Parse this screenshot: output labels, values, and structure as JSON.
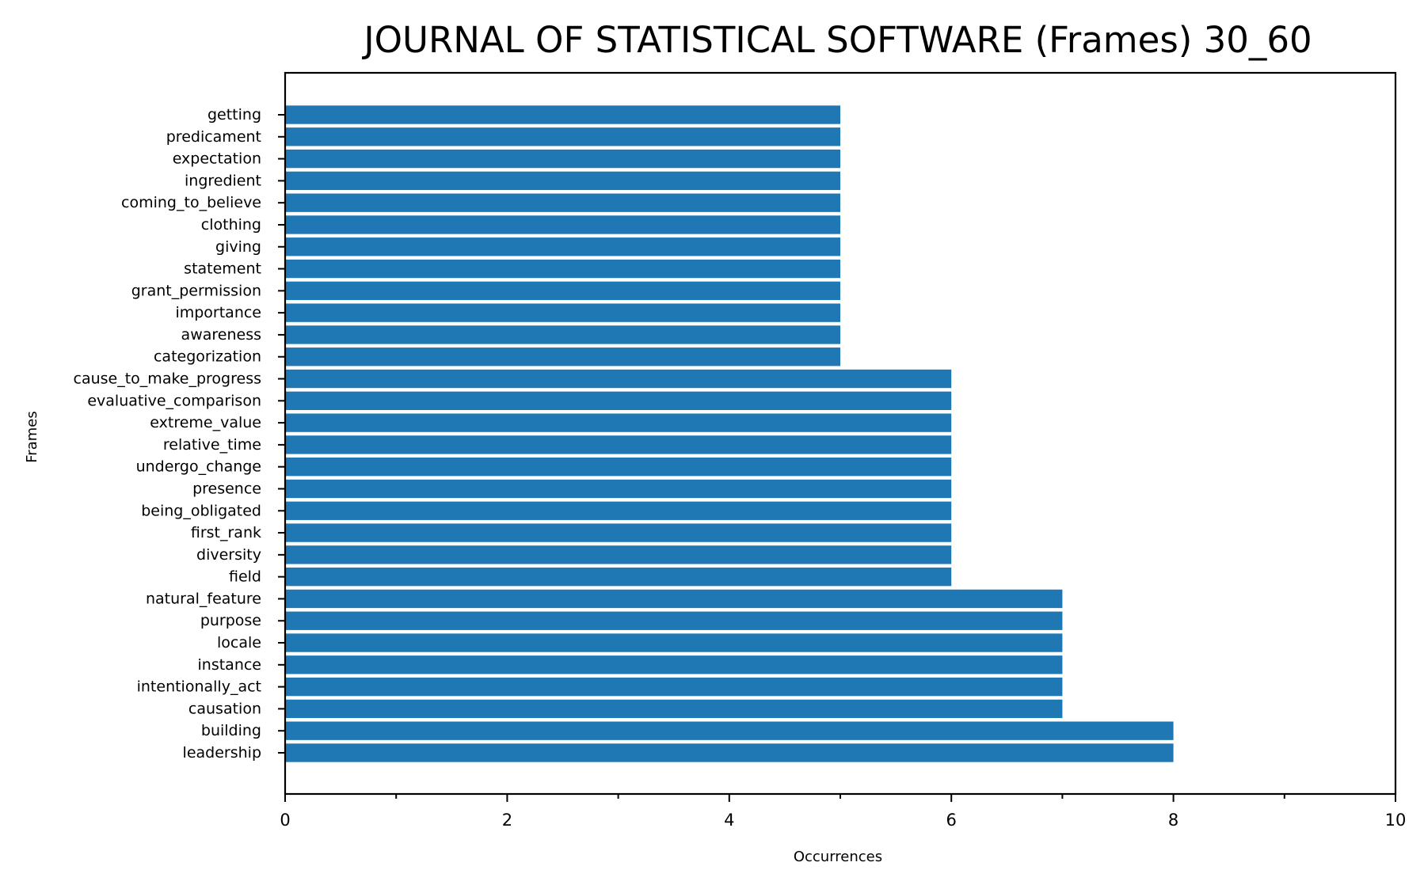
{
  "chart_data": {
    "type": "bar",
    "orientation": "horizontal",
    "title": "JOURNAL OF STATISTICAL SOFTWARE (Frames) 30_60",
    "xlabel": "Occurrences",
    "ylabel": "Frames",
    "xlim": [
      0,
      10
    ],
    "xticks": [
      0,
      2,
      4,
      6,
      8,
      10
    ],
    "grid": false,
    "bar_color": "#1f77b4",
    "categories": [
      "getting",
      "predicament",
      "expectation",
      "ingredient",
      "coming_to_believe",
      "clothing",
      "giving",
      "statement",
      "grant_permission",
      "importance",
      "awareness",
      "categorization",
      "cause_to_make_progress",
      "evaluative_comparison",
      "extreme_value",
      "relative_time",
      "undergo_change",
      "presence",
      "being_obligated",
      "first_rank",
      "diversity",
      "field",
      "natural_feature",
      "purpose",
      "locale",
      "instance",
      "intentionally_act",
      "causation",
      "building",
      "leadership"
    ],
    "values": [
      5,
      5,
      5,
      5,
      5,
      5,
      5,
      5,
      5,
      5,
      5,
      5,
      6,
      6,
      6,
      6,
      6,
      6,
      6,
      6,
      6,
      6,
      7,
      7,
      7,
      7,
      7,
      7,
      8,
      8
    ]
  }
}
